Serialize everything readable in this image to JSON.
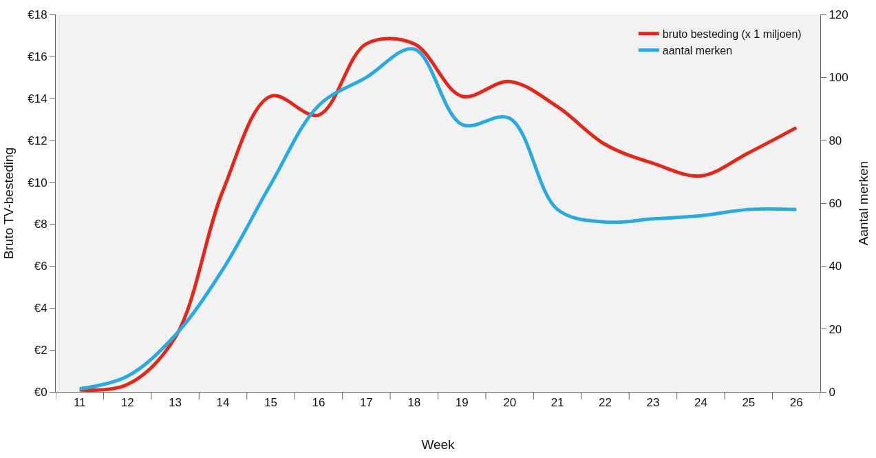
{
  "chart_data": {
    "type": "line",
    "xlabel": "Week",
    "ylabel": "Bruto TV-besteding",
    "y2label": "Aantal merken",
    "categories": [
      "11",
      "12",
      "13",
      "14",
      "15",
      "16",
      "17",
      "18",
      "19",
      "20",
      "21",
      "22",
      "23",
      "24",
      "25",
      "26"
    ],
    "series": [
      {
        "name": "bruto besteding (x 1 miljoen)",
        "color": "#e2281b",
        "values": [
          0.1,
          0.35,
          2.6,
          9.6,
          14.1,
          13.2,
          16.6,
          16.6,
          14.1,
          14.8,
          13.6,
          11.8,
          10.9,
          10.3,
          11.4,
          12.6
        ]
      },
      {
        "name": "aantal merken",
        "color": "#29abe2",
        "axis": "y2",
        "values": [
          1,
          5,
          18,
          39,
          66,
          91,
          100,
          109,
          85,
          87,
          58,
          54,
          55,
          56,
          58,
          58
        ]
      }
    ],
    "ylim": [
      0,
      18
    ],
    "yticks": [
      {
        "value": 0,
        "label": "€0"
      },
      {
        "value": 2,
        "label": "€2"
      },
      {
        "value": 4,
        "label": "€4"
      },
      {
        "value": 6,
        "label": "€6"
      },
      {
        "value": 8,
        "label": "€8"
      },
      {
        "value": 10,
        "label": "€10"
      },
      {
        "value": 12,
        "label": "€12"
      },
      {
        "value": 14,
        "label": "€14"
      },
      {
        "value": 16,
        "label": "€16"
      },
      {
        "value": 18,
        "label": "€18"
      }
    ],
    "y2lim": [
      0,
      120
    ],
    "y2ticks": [
      0,
      20,
      40,
      60,
      80,
      100,
      120
    ],
    "grid": false,
    "legend": "top right"
  }
}
